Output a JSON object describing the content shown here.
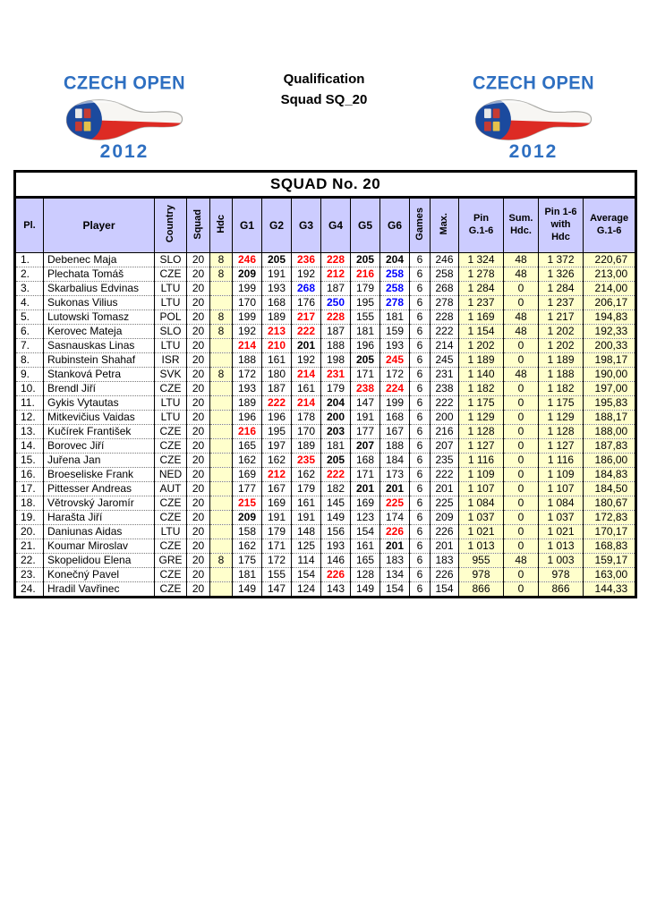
{
  "header": {
    "line1": "Qualification",
    "line2": "Squad SQ_20"
  },
  "logo": {
    "title": "CZECH OPEN",
    "year": "2012"
  },
  "table": {
    "title": "SQUAD No. 20",
    "columns": {
      "pl": "Pl.",
      "player": "Player",
      "country": "Country",
      "squad": "Squad",
      "hdc": "Hdc",
      "g": [
        "G1",
        "G2",
        "G3",
        "G4",
        "G5",
        "G6"
      ],
      "games": "Games",
      "max": "Max.",
      "pin": "Pin\nG.1-6",
      "sum_hdc": "Sum.\nHdc.",
      "pin_hdc": "Pin 1-6\nwith\nHdc",
      "average": "Average\nG.1-6"
    },
    "rows": [
      {
        "pl": "1.",
        "player": "Debenec Maja",
        "country": "SLO",
        "squad": "20",
        "hdc": "8",
        "g": [
          "246",
          "205",
          "236",
          "228",
          "205",
          "204"
        ],
        "games": "6",
        "max": "246",
        "pin": "1 324",
        "sum": "48",
        "pinhdc": "1 372",
        "avg": "220,67"
      },
      {
        "pl": "2.",
        "player": "Plechata Tomáš",
        "country": "CZE",
        "squad": "20",
        "hdc": "8",
        "g": [
          "209",
          "191",
          "192",
          "212",
          "216",
          "258"
        ],
        "games": "6",
        "max": "258",
        "pin": "1 278",
        "sum": "48",
        "pinhdc": "1 326",
        "avg": "213,00"
      },
      {
        "pl": "3.",
        "player": "Skarbalius Edvinas",
        "country": "LTU",
        "squad": "20",
        "hdc": "",
        "g": [
          "199",
          "193",
          "268",
          "187",
          "179",
          "258"
        ],
        "games": "6",
        "max": "268",
        "pin": "1 284",
        "sum": "0",
        "pinhdc": "1 284",
        "avg": "214,00"
      },
      {
        "pl": "4.",
        "player": "Sukonas Vilius",
        "country": "LTU",
        "squad": "20",
        "hdc": "",
        "g": [
          "170",
          "168",
          "176",
          "250",
          "195",
          "278"
        ],
        "games": "6",
        "max": "278",
        "pin": "1 237",
        "sum": "0",
        "pinhdc": "1 237",
        "avg": "206,17"
      },
      {
        "pl": "5.",
        "player": "Lutowski Tomasz",
        "country": "POL",
        "squad": "20",
        "hdc": "8",
        "g": [
          "199",
          "189",
          "217",
          "228",
          "155",
          "181"
        ],
        "games": "6",
        "max": "228",
        "pin": "1 169",
        "sum": "48",
        "pinhdc": "1 217",
        "avg": "194,83"
      },
      {
        "pl": "6.",
        "player": "Kerovec Mateja",
        "country": "SLO",
        "squad": "20",
        "hdc": "8",
        "g": [
          "192",
          "213",
          "222",
          "187",
          "181",
          "159"
        ],
        "games": "6",
        "max": "222",
        "pin": "1 154",
        "sum": "48",
        "pinhdc": "1 202",
        "avg": "192,33"
      },
      {
        "pl": "7.",
        "player": "Sasnauskas Linas",
        "country": "LTU",
        "squad": "20",
        "hdc": "",
        "g": [
          "214",
          "210",
          "201",
          "188",
          "196",
          "193"
        ],
        "games": "6",
        "max": "214",
        "pin": "1 202",
        "sum": "0",
        "pinhdc": "1 202",
        "avg": "200,33"
      },
      {
        "pl": "8.",
        "player": "Rubinstein Shahaf",
        "country": "ISR",
        "squad": "20",
        "hdc": "",
        "g": [
          "188",
          "161",
          "192",
          "198",
          "205",
          "245"
        ],
        "games": "6",
        "max": "245",
        "pin": "1 189",
        "sum": "0",
        "pinhdc": "1 189",
        "avg": "198,17"
      },
      {
        "pl": "9.",
        "player": "Stanková Petra",
        "country": "SVK",
        "squad": "20",
        "hdc": "8",
        "g": [
          "172",
          "180",
          "214",
          "231",
          "171",
          "172"
        ],
        "games": "6",
        "max": "231",
        "pin": "1 140",
        "sum": "48",
        "pinhdc": "1 188",
        "avg": "190,00"
      },
      {
        "pl": "10.",
        "player": "Brendl Jiří",
        "country": "CZE",
        "squad": "20",
        "hdc": "",
        "g": [
          "193",
          "187",
          "161",
          "179",
          "238",
          "224"
        ],
        "games": "6",
        "max": "238",
        "pin": "1 182",
        "sum": "0",
        "pinhdc": "1 182",
        "avg": "197,00"
      },
      {
        "pl": "11.",
        "player": "Gykis Vytautas",
        "country": "LTU",
        "squad": "20",
        "hdc": "",
        "g": [
          "189",
          "222",
          "214",
          "204",
          "147",
          "199"
        ],
        "games": "6",
        "max": "222",
        "pin": "1 175",
        "sum": "0",
        "pinhdc": "1 175",
        "avg": "195,83"
      },
      {
        "pl": "12.",
        "player": "Mitkevičius Vaidas",
        "country": "LTU",
        "squad": "20",
        "hdc": "",
        "g": [
          "196",
          "196",
          "178",
          "200",
          "191",
          "168"
        ],
        "games": "6",
        "max": "200",
        "pin": "1 129",
        "sum": "0",
        "pinhdc": "1 129",
        "avg": "188,17"
      },
      {
        "pl": "13.",
        "player": "Kučírek František",
        "country": "CZE",
        "squad": "20",
        "hdc": "",
        "g": [
          "216",
          "195",
          "170",
          "203",
          "177",
          "167"
        ],
        "games": "6",
        "max": "216",
        "pin": "1 128",
        "sum": "0",
        "pinhdc": "1 128",
        "avg": "188,00"
      },
      {
        "pl": "14.",
        "player": "Borovec Jiří",
        "country": "CZE",
        "squad": "20",
        "hdc": "",
        "g": [
          "165",
          "197",
          "189",
          "181",
          "207",
          "188"
        ],
        "games": "6",
        "max": "207",
        "pin": "1 127",
        "sum": "0",
        "pinhdc": "1 127",
        "avg": "187,83"
      },
      {
        "pl": "15.",
        "player": "Juřena Jan",
        "country": "CZE",
        "squad": "20",
        "hdc": "",
        "g": [
          "162",
          "162",
          "235",
          "205",
          "168",
          "184"
        ],
        "games": "6",
        "max": "235",
        "pin": "1 116",
        "sum": "0",
        "pinhdc": "1 116",
        "avg": "186,00"
      },
      {
        "pl": "16.",
        "player": "Broeseliske Frank",
        "country": "NED",
        "squad": "20",
        "hdc": "",
        "g": [
          "169",
          "212",
          "162",
          "222",
          "171",
          "173"
        ],
        "games": "6",
        "max": "222",
        "pin": "1 109",
        "sum": "0",
        "pinhdc": "1 109",
        "avg": "184,83"
      },
      {
        "pl": "17.",
        "player": "Pittesser Andreas",
        "country": "AUT",
        "squad": "20",
        "hdc": "",
        "g": [
          "177",
          "167",
          "179",
          "182",
          "201",
          "201"
        ],
        "games": "6",
        "max": "201",
        "pin": "1 107",
        "sum": "0",
        "pinhdc": "1 107",
        "avg": "184,50"
      },
      {
        "pl": "18.",
        "player": "Větrovský Jaromír",
        "country": "CZE",
        "squad": "20",
        "hdc": "",
        "g": [
          "215",
          "169",
          "161",
          "145",
          "169",
          "225"
        ],
        "games": "6",
        "max": "225",
        "pin": "1 084",
        "sum": "0",
        "pinhdc": "1 084",
        "avg": "180,67"
      },
      {
        "pl": "19.",
        "player": "Harašta Jiří",
        "country": "CZE",
        "squad": "20",
        "hdc": "",
        "g": [
          "209",
          "191",
          "191",
          "149",
          "123",
          "174"
        ],
        "games": "6",
        "max": "209",
        "pin": "1 037",
        "sum": "0",
        "pinhdc": "1 037",
        "avg": "172,83"
      },
      {
        "pl": "20.",
        "player": "Daniunas Aidas",
        "country": "LTU",
        "squad": "20",
        "hdc": "",
        "g": [
          "158",
          "179",
          "148",
          "156",
          "154",
          "226"
        ],
        "games": "6",
        "max": "226",
        "pin": "1 021",
        "sum": "0",
        "pinhdc": "1 021",
        "avg": "170,17"
      },
      {
        "pl": "21.",
        "player": "Koumar Miroslav",
        "country": "CZE",
        "squad": "20",
        "hdc": "",
        "g": [
          "162",
          "171",
          "125",
          "193",
          "161",
          "201"
        ],
        "games": "6",
        "max": "201",
        "pin": "1 013",
        "sum": "0",
        "pinhdc": "1 013",
        "avg": "168,83"
      },
      {
        "pl": "22.",
        "player": "Skopelidou Elena",
        "country": "GRE",
        "squad": "20",
        "hdc": "8",
        "g": [
          "175",
          "172",
          "114",
          "146",
          "165",
          "183"
        ],
        "games": "6",
        "max": "183",
        "pin": "955",
        "sum": "48",
        "pinhdc": "1 003",
        "avg": "159,17"
      },
      {
        "pl": "23.",
        "player": "Konečný Pavel",
        "country": "CZE",
        "squad": "20",
        "hdc": "",
        "g": [
          "181",
          "155",
          "154",
          "226",
          "128",
          "134"
        ],
        "games": "6",
        "max": "226",
        "pin": "978",
        "sum": "0",
        "pinhdc": "978",
        "avg": "163,00"
      },
      {
        "pl": "24.",
        "player": "Hradil Vavřinec",
        "country": "CZE",
        "squad": "20",
        "hdc": "",
        "g": [
          "149",
          "147",
          "124",
          "143",
          "149",
          "154"
        ],
        "games": "6",
        "max": "154",
        "pin": "866",
        "sum": "0",
        "pinhdc": "866",
        "avg": "144,33"
      }
    ],
    "score_format_rules": {
      "bold_black_min": 200,
      "red_min": 210,
      "blue_min": 250
    }
  },
  "colors": {
    "header_bg": "#ccccff",
    "highlight_bg": "#ffffcc",
    "score_red": "#ff0000",
    "score_blue": "#0000ff",
    "logo_blue": "#2e6fc1",
    "flag_blue": "#1b4a9e",
    "flag_red": "#dd2b24"
  }
}
